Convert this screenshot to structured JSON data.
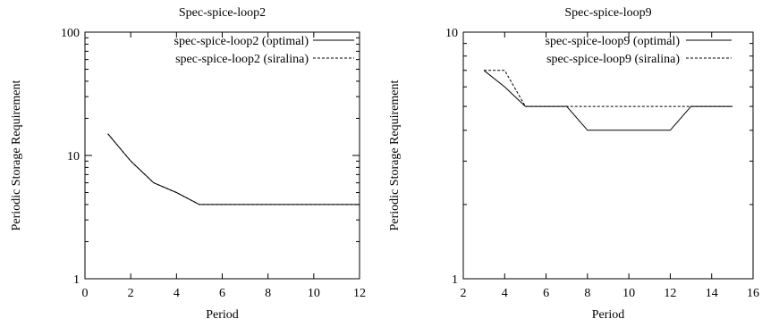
{
  "chart_data": [
    {
      "type": "line",
      "title": "Spec-spice-loop2",
      "xlabel": "Period",
      "ylabel": "Periodic Storage Requirement",
      "xlim": [
        0,
        12
      ],
      "ylim": [
        1,
        100
      ],
      "yscale": "log",
      "xticks": [
        "0",
        "2",
        "4",
        "6",
        "8",
        "10",
        "12"
      ],
      "yticks": [
        "1",
        "10",
        "100"
      ],
      "grid": false,
      "legend_position": "top-right",
      "series": [
        {
          "name": "spec-spice-loop2 (optimal)",
          "style": "solid",
          "x": [
            1,
            2,
            3,
            4,
            5,
            6,
            7,
            8,
            9,
            10,
            11,
            12
          ],
          "y": [
            15,
            9,
            6,
            5,
            4,
            4,
            4,
            4,
            4,
            4,
            4,
            4
          ]
        },
        {
          "name": "spec-spice-loop2 (siralina)",
          "style": "dashed",
          "x": [
            1,
            2,
            3,
            4,
            5,
            6,
            7,
            8,
            9,
            10,
            11,
            12
          ],
          "y": [
            15,
            9,
            6,
            5,
            4,
            4,
            4,
            4,
            4,
            4,
            4,
            4
          ]
        }
      ]
    },
    {
      "type": "line",
      "title": "Spec-spice-loop9",
      "xlabel": "Period",
      "ylabel": "Periodic Storage Requirement",
      "xlim": [
        2,
        16
      ],
      "ylim": [
        1,
        10
      ],
      "yscale": "log",
      "xticks": [
        "2",
        "4",
        "6",
        "8",
        "10",
        "12",
        "14",
        "16"
      ],
      "yticks": [
        "1",
        "10"
      ],
      "grid": false,
      "legend_position": "top-right",
      "series": [
        {
          "name": "spec-spice-loop9 (optimal)",
          "style": "solid",
          "x": [
            3,
            4,
            5,
            6,
            7,
            8,
            9,
            10,
            11,
            12,
            13,
            14,
            15
          ],
          "y": [
            7,
            6,
            5,
            5,
            5,
            4,
            4,
            4,
            4,
            4,
            5,
            5,
            5
          ]
        },
        {
          "name": "spec-spice-loop9 (siralina)",
          "style": "dashed",
          "x": [
            3,
            4,
            5,
            6,
            7,
            8,
            9,
            10,
            11,
            12,
            13,
            14,
            15
          ],
          "y": [
            7,
            7,
            5,
            5,
            5,
            5,
            5,
            5,
            5,
            5,
            5,
            5,
            5
          ]
        }
      ]
    }
  ]
}
